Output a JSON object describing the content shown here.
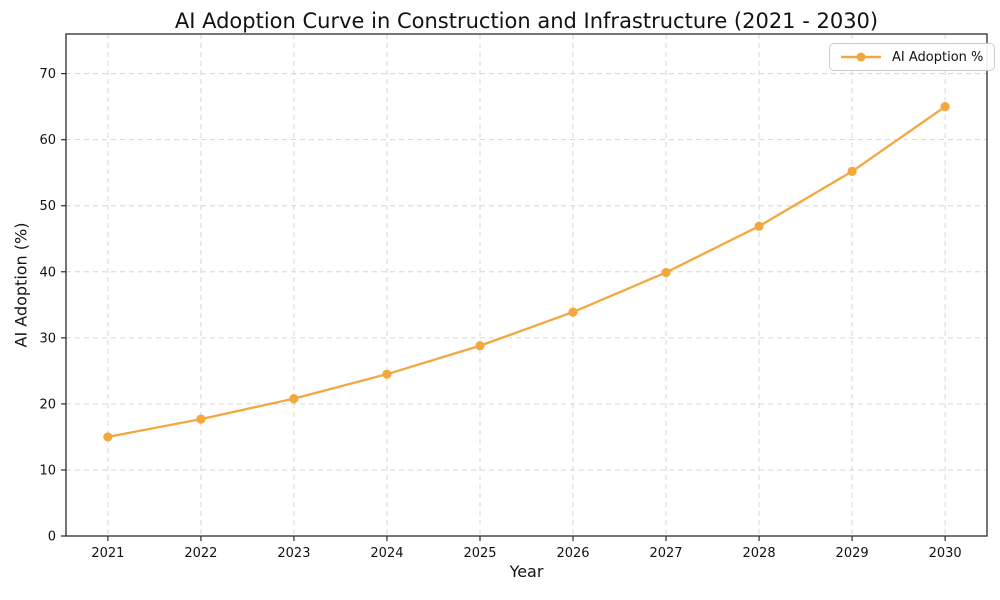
{
  "chart_data": {
    "type": "line",
    "title": "AI Adoption Curve in Construction and Infrastructure (2021 - 2030)",
    "xlabel": "Year",
    "ylabel": "AI Adoption (%)",
    "categories": [
      2021,
      2022,
      2023,
      2024,
      2025,
      2026,
      2027,
      2028,
      2029,
      2030
    ],
    "series": [
      {
        "name": "AI Adoption %",
        "values": [
          15.0,
          17.7,
          20.8,
          24.5,
          28.8,
          33.9,
          39.9,
          46.9,
          55.2,
          65.0
        ],
        "marker": "circle"
      }
    ],
    "yticks": [
      0,
      10,
      20,
      30,
      40,
      50,
      60,
      70
    ],
    "ylim": [
      0,
      76
    ],
    "grid": true,
    "grid_style": "dashed",
    "legend_position": "upper-right"
  },
  "colors": {
    "line": "#F2A83E",
    "marker": "#F2A83E",
    "grid": "#D6D6D6",
    "spine": "#2B2B2B",
    "tick": "#2B2B2B",
    "text": "#121212",
    "legend_border": "#CCCCCC",
    "background": "#FFFFFF"
  }
}
